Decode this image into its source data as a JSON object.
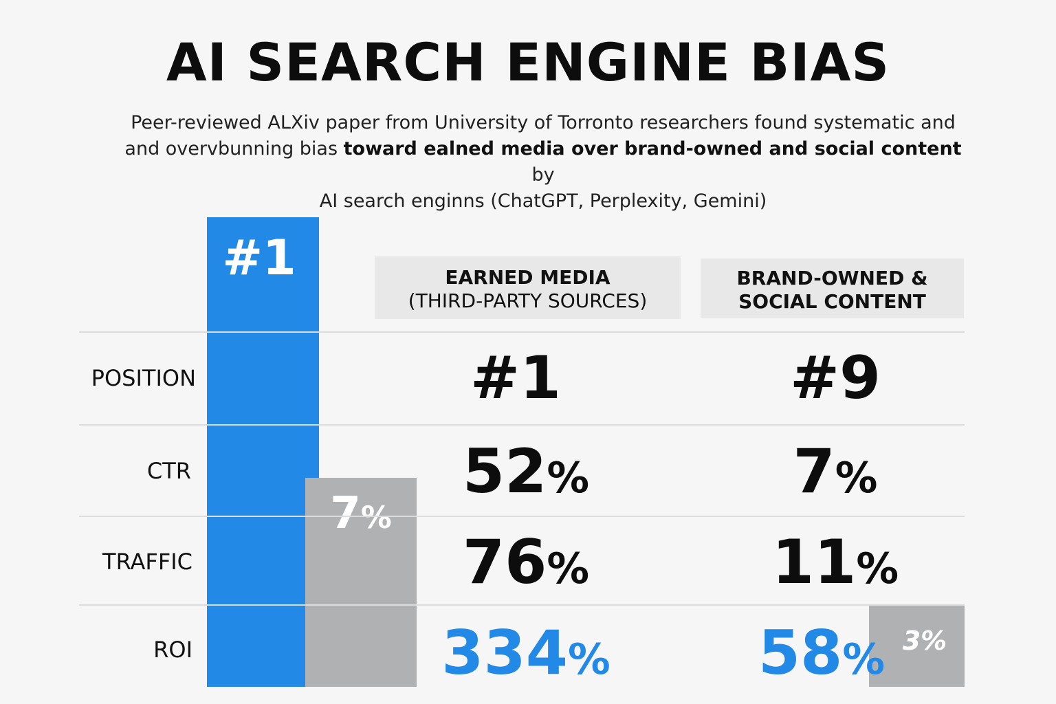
{
  "title": "AI SEARCH ENGINE BIAS",
  "subtitle": {
    "line1": "Peer-reviewed ALXiv paper from University of Torronto researchers found systematic and",
    "line2_pre": "and overvbunning bias ",
    "line2_bold": "toward ealned media over brand-owned and social content",
    "line2_post": " by",
    "line3": "AI search enginns (ChatGPT, Perplexity, Gemini)"
  },
  "columns": [
    {
      "line1": "EARNED MEDIA",
      "line2": "(THIRD-PARTY SOURCES)"
    },
    {
      "line1": "BRAND-OWNED &",
      "line2": "SOCIAL CONTENT"
    }
  ],
  "rows": [
    {
      "label": "POSITION",
      "earned": "#1",
      "brand": "#9"
    },
    {
      "label": "CTR",
      "earned_num": "52",
      "brand_num": "7",
      "unit": "%"
    },
    {
      "label": "TRAFFIC",
      "earned_num": "76",
      "brand_num": "11",
      "unit": "%"
    },
    {
      "label": "ROI",
      "earned_num": "334",
      "brand_num": "58",
      "unit": "%"
    }
  ],
  "bars": {
    "blue_label": "#1",
    "gray_num": "7",
    "gray_unit": "%",
    "gray2_label": "3%"
  },
  "colors": {
    "accent": "#2289e6",
    "gray": "#b0b1b3",
    "header_bg": "#e8e8e8"
  },
  "chart_data": {
    "type": "table",
    "title": "AI SEARCH ENGINE BIAS",
    "columns": [
      "EARNED MEDIA (THIRD-PARTY SOURCES)",
      "BRAND-OWNED & SOCIAL CONTENT"
    ],
    "rows": [
      "POSITION",
      "CTR",
      "TRAFFIC",
      "ROI"
    ],
    "values": [
      [
        "#1",
        "#9"
      ],
      [
        "52%",
        "7%"
      ],
      [
        "76%",
        "11%"
      ],
      [
        "334%",
        "58%"
      ]
    ]
  }
}
